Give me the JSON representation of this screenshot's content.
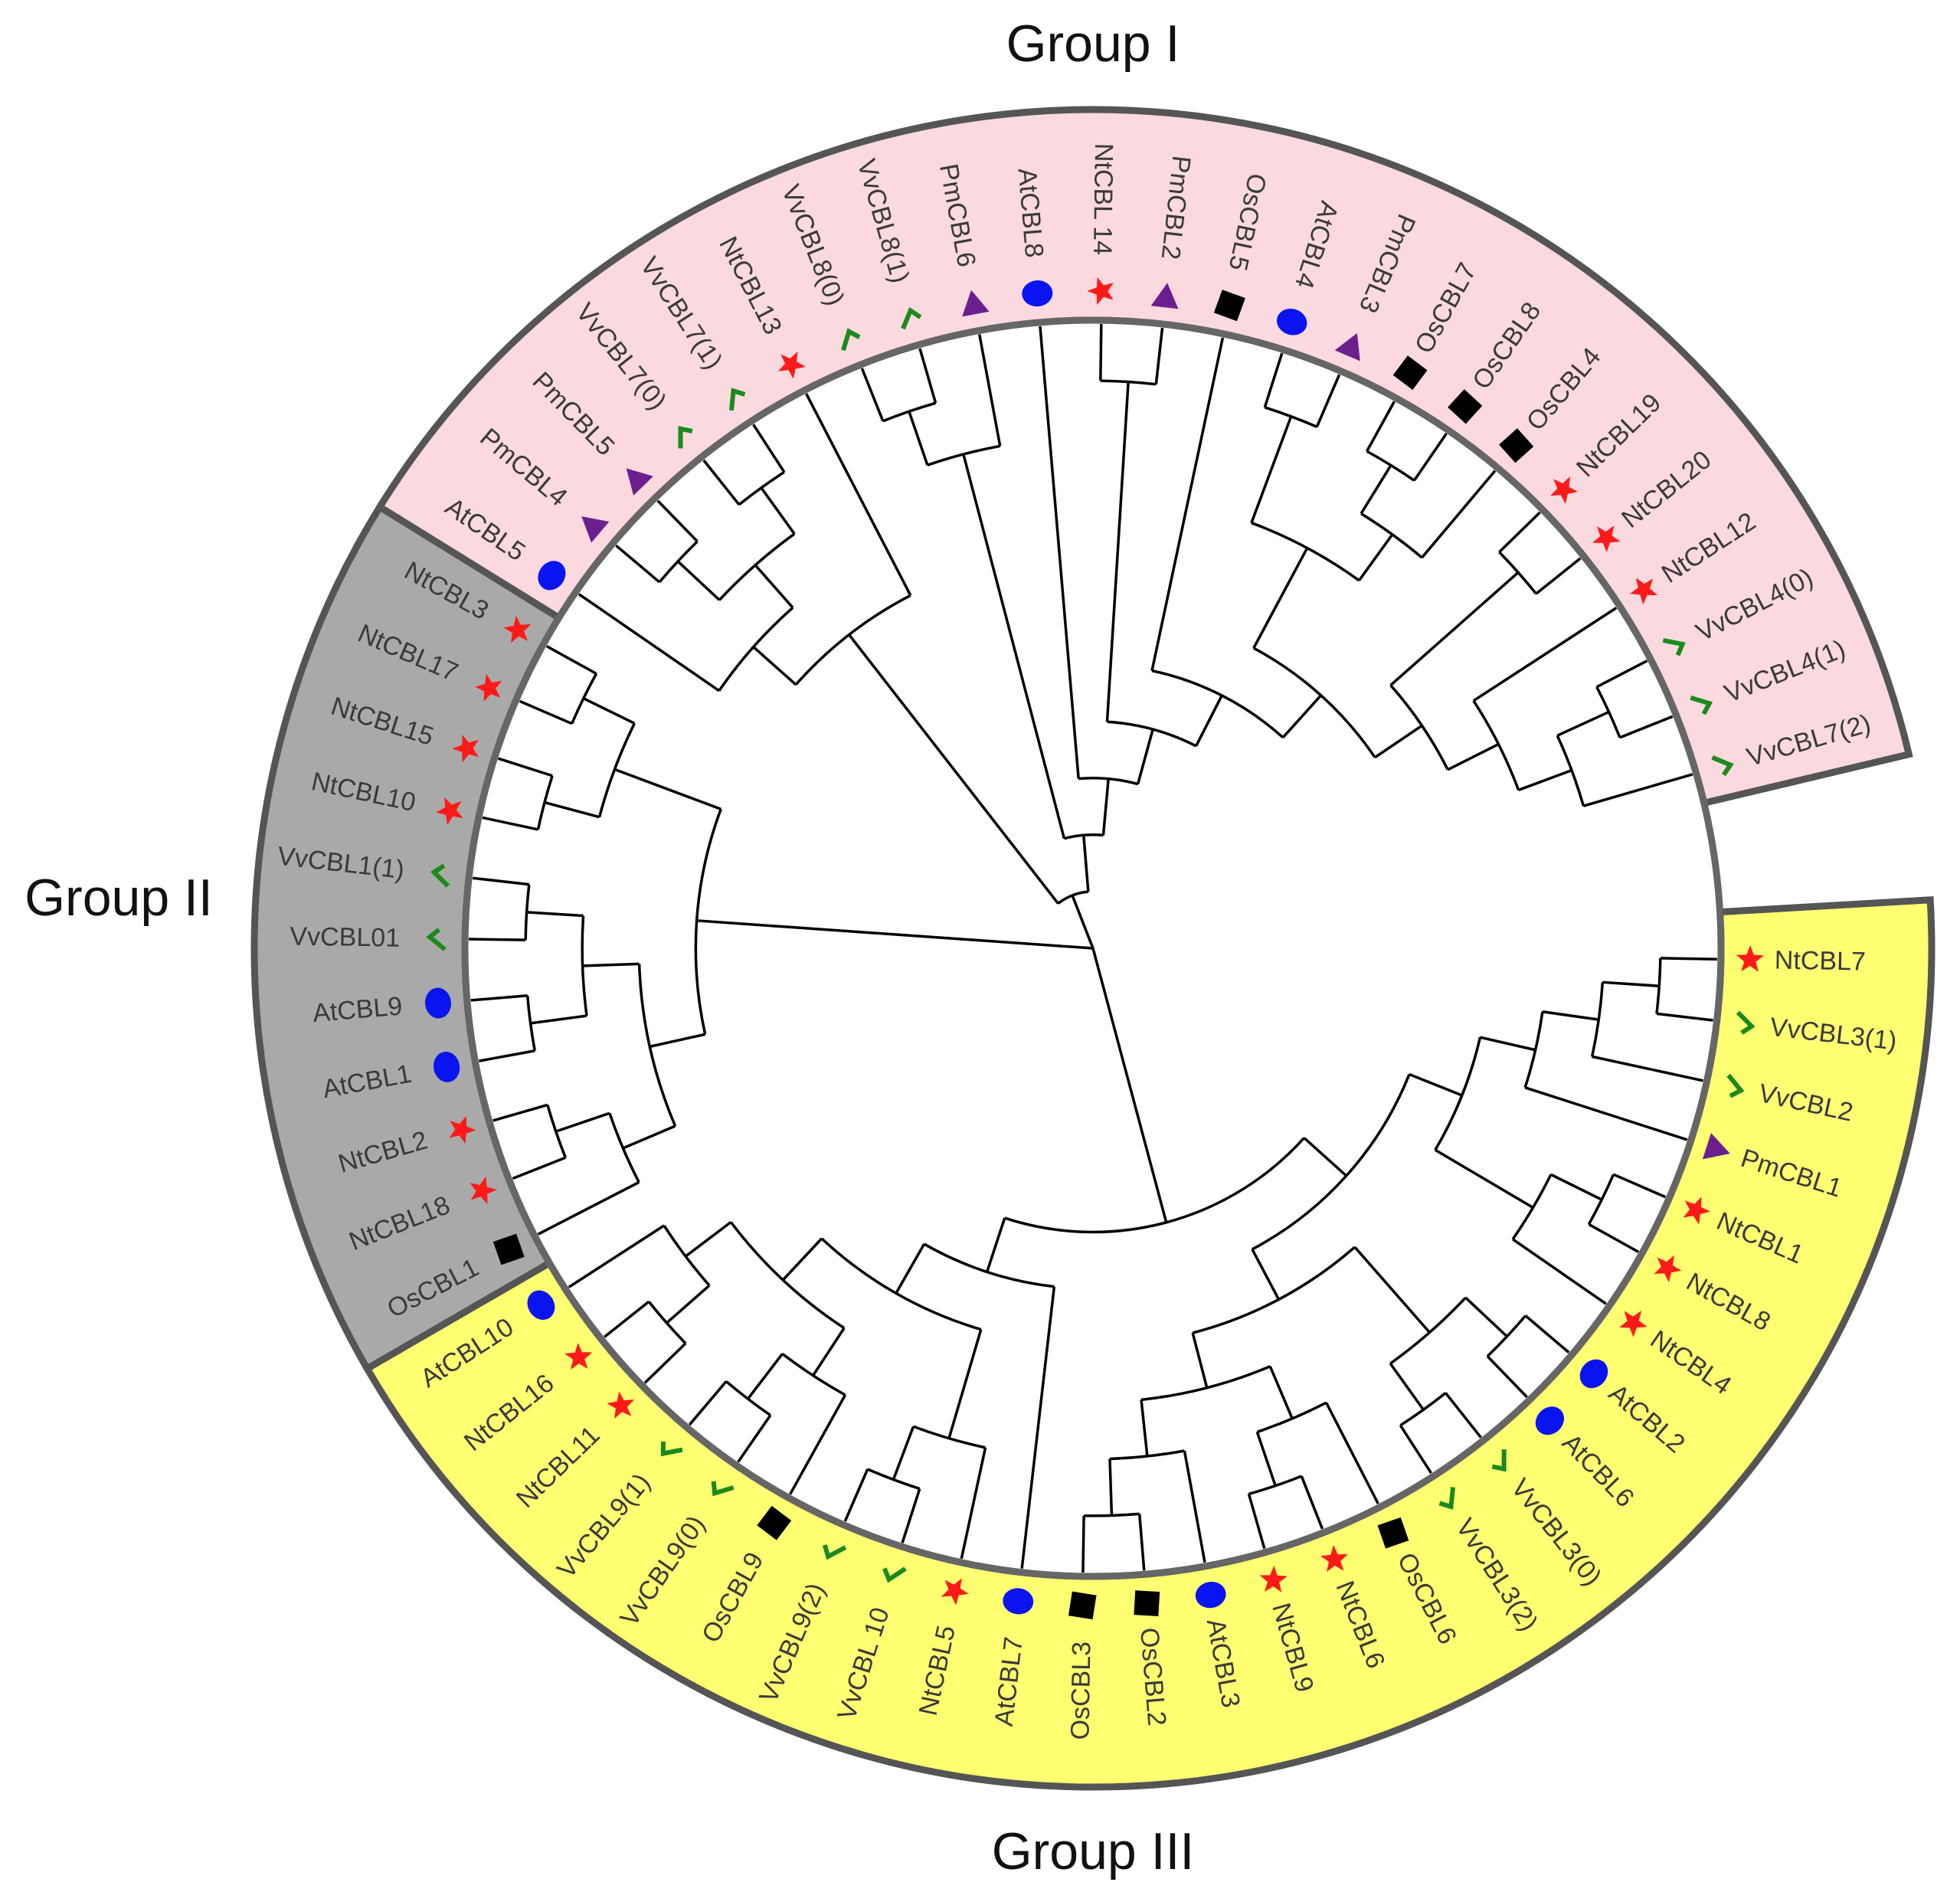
{
  "leaves": [
    "NtCBL7",
    "VvCBL3(1)",
    "VvCBL2",
    "PmCBL1",
    "NtCBL1",
    "NtCBL8",
    "NtCBL4",
    "AtCBL2",
    "AtCBL6",
    "VvCBL3(0)",
    "VvCBL3(2)",
    "OsCBL6",
    "NtCBL6",
    "NtCBL9",
    "AtCBL3",
    "OsCBL2",
    "OsCBL3",
    "AtCBL7",
    "NtCBL5",
    "VvCBL 10",
    "VvCBL9(2)",
    "OsCBL9",
    "VvCBL9(0)",
    "VvCBL9(1)",
    "NtCBL11",
    "NtCBL16",
    "AtCBL10",
    "OsCBL1",
    "NtCBL18",
    "NtCBL2",
    "AtCBL1",
    "AtCBL9",
    "VvCBL01",
    "VvCBL1(1)",
    "NtCBL10",
    "NtCBL15",
    "NtCBL17",
    "NtCBL3",
    "AtCBL5",
    "PmCBL4",
    "PmCBL5",
    "VvCBL7(0)",
    "VvCBL7(1)",
    "NtCBL13",
    "VvCBL8(0)",
    "VvCBL8(1)",
    "PmCBL6",
    "AtCBL8",
    "NtCBL 14",
    "PmCBL2",
    "OsCBL5",
    "AtCBL4",
    "PmCBL3",
    "OsCBL7",
    "OsCBL8",
    "OsCBL4",
    "NtCBL19",
    "NtCBL20",
    "NtCBL12",
    "VvCBL4(0)",
    "VvCBL4(1)",
    "VvCBL7(2)"
  ],
  "tree": [
    [
      [
        [
          [
            [
              [
                0,
                1
              ],
              2
            ],
            3
          ],
          [
            [
              4,
              5
            ],
            6
          ]
        ],
        [
          [
            [
              7,
              8
            ],
            [
              9,
              10
            ]
          ],
          [
            [
              11,
              [
                12,
                13
              ]
            ],
            [
              14,
              [
                15,
                16
              ]
            ]
          ]
        ]
      ],
      [
        17,
        [
          [
            18,
            [
              19,
              20
            ]
          ],
          [
            [
              21,
              [
                22,
                23
              ]
            ],
            [
              [
                24,
                25
              ],
              26
            ]
          ]
        ]
      ]
    ],
    [
      [
        [
          27,
          [
            28,
            29
          ]
        ],
        [
          [
            30,
            31
          ],
          [
            32,
            33
          ]
        ]
      ],
      [
        [
          34,
          35
        ],
        [
          36,
          37
        ]
      ]
    ],
    [
      [
        [
          38,
          [
            [
              39,
              40
            ],
            [
              41,
              42
            ]
          ]
        ],
        43
      ],
      [
        [
          [
            44,
            45
          ],
          46
        ],
        [
          47,
          [
            [
              48,
              49
            ],
            [
              50,
              [
                [
                  [
                    51,
                    52
                  ],
                  [
                    [
                      53,
                      54
                    ],
                    55
                  ]
                ],
                [
                  [
                    56,
                    57
                  ],
                  [
                    58,
                    [
                      [
                        59,
                        60
                      ],
                      61
                    ]
                  ]
                ]
              ]
            ]
          ]
        ]
      ]
    ]
  ],
  "groups": [
    {
      "label": "Group III",
      "color": "#FFFF72",
      "from": 0,
      "to": 26
    },
    {
      "label": "Group II",
      "color": "#A9A9A9",
      "from": 27,
      "to": 37
    },
    {
      "label": "Group  I",
      "color": "#FAD9DF",
      "from": 38,
      "to": 61
    }
  ],
  "markers": {
    "At": {
      "shape": "circle",
      "color": "#0A14F0"
    },
    "Nt": {
      "shape": "star",
      "color": "#FF1A1A"
    },
    "Pm": {
      "shape": "triangle",
      "color": "#6B1F8F"
    },
    "Os": {
      "shape": "square",
      "color": "#000000"
    },
    "Vv": {
      "shape": "check",
      "color": "#1C8A1C"
    }
  }
}
